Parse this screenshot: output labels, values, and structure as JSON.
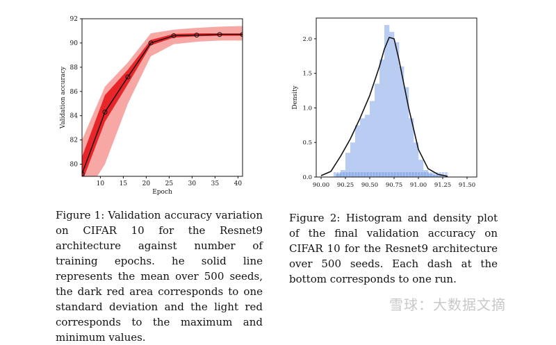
{
  "chart_data": [
    {
      "type": "line",
      "xlabel": "Epoch",
      "ylabel": "Validation accuracy",
      "xlim": [
        6,
        41
      ],
      "ylim": [
        79,
        92
      ],
      "xticks": [
        10,
        15,
        20,
        25,
        30,
        35,
        40
      ],
      "yticks": [
        80,
        82,
        84,
        86,
        88,
        90,
        92
      ],
      "grid": false,
      "colors": {
        "line": "#111111",
        "dark_band": "#e8262a",
        "light_band": "#f7a8a4"
      },
      "series": [
        {
          "x": [
            6,
            11,
            16,
            21,
            26,
            31,
            36,
            41
          ],
          "mean": [
            79.2,
            84.3,
            87.2,
            90.0,
            90.6,
            90.65,
            90.7,
            90.7
          ],
          "std_low": [
            78.5,
            83.5,
            86.6,
            89.8,
            90.45,
            90.55,
            90.6,
            90.6
          ],
          "std_high": [
            80.6,
            85.7,
            87.8,
            90.25,
            90.75,
            90.8,
            90.8,
            90.8
          ],
          "min": [
            77.0,
            80.0,
            85.0,
            88.9,
            89.9,
            90.1,
            90.2,
            90.2
          ],
          "max": [
            82.0,
            86.4,
            88.4,
            90.8,
            91.1,
            91.25,
            91.35,
            91.4
          ]
        }
      ]
    },
    {
      "type": "histogram",
      "xlabel": "",
      "ylabel": "Density",
      "xlim": [
        89.95,
        91.6
      ],
      "ylim": [
        0,
        2.3
      ],
      "xticks": [
        "90.00",
        "90.25",
        "90.50",
        "90.75",
        "91.00",
        "91.25",
        "91.50"
      ],
      "yticks": [
        "0.0",
        "0.5",
        "1.0",
        "1.5",
        "2.0"
      ],
      "grid": false,
      "colors": {
        "bars": "#b9cdf2",
        "rug": "#5b86d8",
        "kde": "#111111"
      },
      "bins": [
        {
          "x0": 90.15,
          "x1": 90.2,
          "h": 0.05
        },
        {
          "x0": 90.2,
          "x1": 90.25,
          "h": 0.1
        },
        {
          "x0": 90.25,
          "x1": 90.3,
          "h": 0.35
        },
        {
          "x0": 90.3,
          "x1": 90.35,
          "h": 0.5
        },
        {
          "x0": 90.35,
          "x1": 90.4,
          "h": 0.75
        },
        {
          "x0": 90.4,
          "x1": 90.45,
          "h": 0.85
        },
        {
          "x0": 90.45,
          "x1": 90.5,
          "h": 0.9
        },
        {
          "x0": 90.5,
          "x1": 90.55,
          "h": 1.1
        },
        {
          "x0": 90.55,
          "x1": 90.6,
          "h": 1.35
        },
        {
          "x0": 90.6,
          "x1": 90.65,
          "h": 1.7
        },
        {
          "x0": 90.65,
          "x1": 90.7,
          "h": 2.2
        },
        {
          "x0": 90.7,
          "x1": 90.75,
          "h": 2.1
        },
        {
          "x0": 90.75,
          "x1": 90.8,
          "h": 1.95
        },
        {
          "x0": 90.8,
          "x1": 90.85,
          "h": 1.6
        },
        {
          "x0": 90.85,
          "x1": 90.9,
          "h": 1.3
        },
        {
          "x0": 90.9,
          "x1": 90.95,
          "h": 0.85
        },
        {
          "x0": 90.95,
          "x1": 91.0,
          "h": 0.5
        },
        {
          "x0": 91.0,
          "x1": 91.05,
          "h": 0.25
        },
        {
          "x0": 91.05,
          "x1": 91.1,
          "h": 0.1
        },
        {
          "x0": 91.1,
          "x1": 91.15,
          "h": 0.05
        },
        {
          "x0": 91.15,
          "x1": 91.2,
          "h": 0.03
        },
        {
          "x0": 91.2,
          "x1": 91.25,
          "h": 0.03
        }
      ],
      "kde": {
        "x": [
          90.0,
          90.1,
          90.2,
          90.3,
          90.4,
          90.5,
          90.6,
          90.65,
          90.7,
          90.75,
          90.8,
          90.9,
          91.0,
          91.1,
          91.2,
          91.3
        ],
        "y": [
          0.02,
          0.08,
          0.3,
          0.55,
          0.85,
          1.18,
          1.6,
          1.85,
          2.02,
          2.0,
          1.7,
          1.0,
          0.4,
          0.12,
          0.04,
          0.01
        ]
      },
      "rug_range": [
        90.13,
        91.3
      ]
    }
  ],
  "captions": {
    "fig1": "Figure 1: Validation accuracy variation on CIFAR 10 for the Resnet9 architecture against number of training epochs. he solid line represents the mean over 500 seeds, the dark red area corresponds to one standard deviation and the light red corresponds to the maximum and minimum values.",
    "fig2": "Figure 2: Histogram and density plot of the final validation accuracy on CIFAR 10 for the Resnet9 architecture over 500 seeds. Each dash at the bottom corresponds to one run."
  },
  "watermark": "雪球：大数据文摘"
}
